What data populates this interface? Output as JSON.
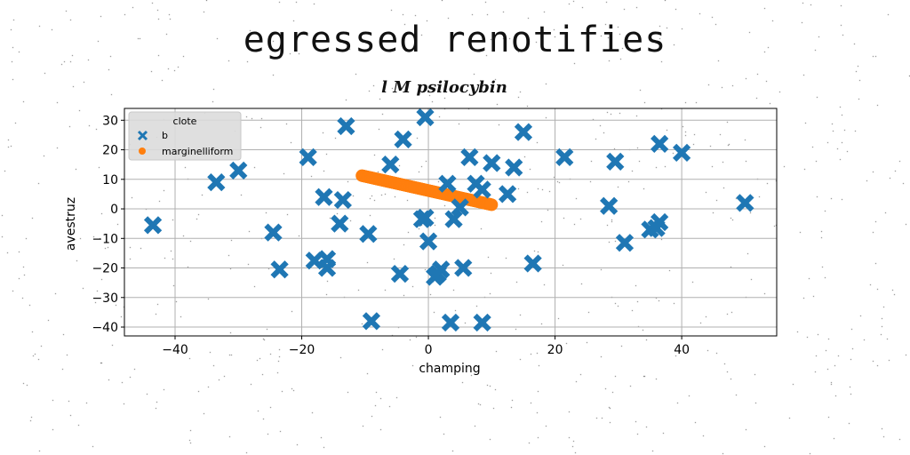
{
  "figure": {
    "suptitle": "egressed renotifies",
    "title": "l M psilocybin"
  },
  "chart_data": {
    "type": "scatter",
    "xlabel": "champing",
    "ylabel": "avestruz",
    "xlim": [
      -48,
      55
    ],
    "ylim": [
      -43,
      34
    ],
    "xticks": [
      -40,
      -20,
      0,
      20,
      40
    ],
    "yticks": [
      30,
      20,
      10,
      0,
      -10,
      -20,
      -30,
      -40
    ],
    "grid": true,
    "legend": {
      "title": "clote",
      "placement": "top-left"
    },
    "series": [
      {
        "name": "b",
        "marker": "x",
        "color": "#1f77b4",
        "points": [
          [
            -43.5,
            -5.5
          ],
          [
            -33.5,
            9
          ],
          [
            -30,
            13
          ],
          [
            -24.5,
            -8
          ],
          [
            -23.5,
            -20.5
          ],
          [
            -19,
            17.5
          ],
          [
            -18,
            -17.5
          ],
          [
            -16.5,
            4
          ],
          [
            -16,
            -17
          ],
          [
            -16,
            -20
          ],
          [
            -14,
            -5
          ],
          [
            -13.5,
            3
          ],
          [
            -13,
            28
          ],
          [
            -9.5,
            -8.5
          ],
          [
            -9,
            -38
          ],
          [
            -6,
            15
          ],
          [
            -4.5,
            -22
          ],
          [
            -4,
            23.5
          ],
          [
            -1,
            -3.5
          ],
          [
            -0.5,
            -3
          ],
          [
            -0.5,
            31
          ],
          [
            0,
            -11
          ],
          [
            1,
            -23
          ],
          [
            1.5,
            -22
          ],
          [
            2,
            -20.5
          ],
          [
            3,
            8.5
          ],
          [
            3.5,
            -38.5
          ],
          [
            4,
            -3.5
          ],
          [
            5,
            0.5
          ],
          [
            5.5,
            -20
          ],
          [
            6.5,
            17.5
          ],
          [
            7.5,
            8.5
          ],
          [
            8.5,
            -38.5
          ],
          [
            8.5,
            6.5
          ],
          [
            10,
            15.5
          ],
          [
            12.5,
            5
          ],
          [
            13.5,
            14
          ],
          [
            15,
            26
          ],
          [
            16.5,
            -18.5
          ],
          [
            21.5,
            17.5
          ],
          [
            28.5,
            1
          ],
          [
            29.5,
            16
          ],
          [
            31,
            -11.5
          ],
          [
            35,
            -7
          ],
          [
            36,
            -6.5
          ],
          [
            36.5,
            -4.5
          ],
          [
            36.5,
            22
          ],
          [
            40,
            19
          ],
          [
            50,
            2
          ]
        ]
      },
      {
        "name": "marginelliform",
        "marker": "o",
        "color": "#ff7f0e",
        "x_range": [
          -10.5,
          10
        ],
        "slope": -0.48,
        "intercept": 6.2,
        "count": 200
      }
    ]
  }
}
